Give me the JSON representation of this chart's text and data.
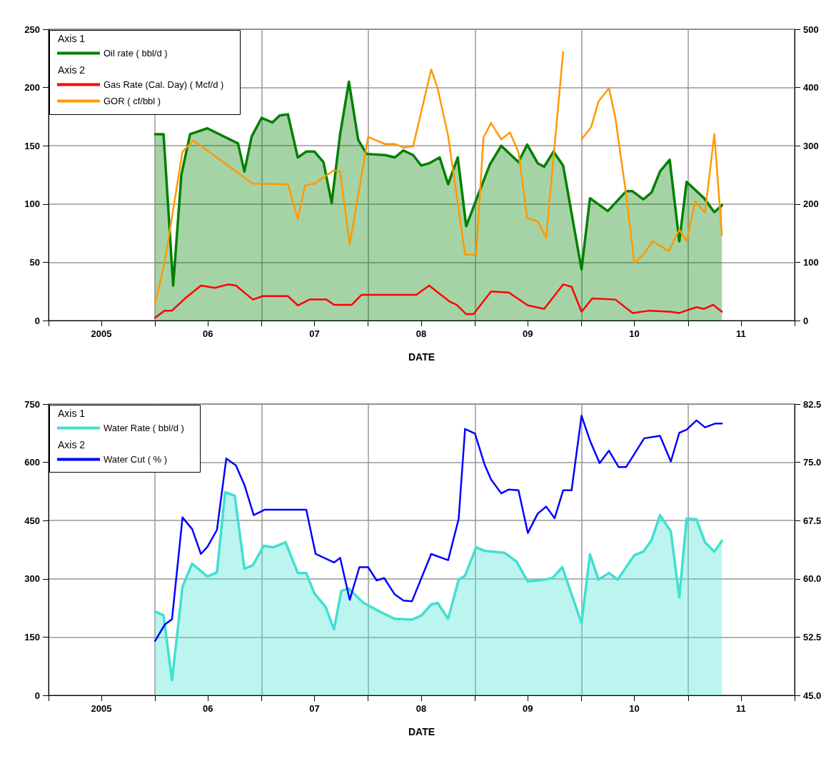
{
  "chart_data": [
    {
      "type": "line",
      "xlabel": "DATE",
      "legend": "top left",
      "grid": true,
      "marker": "none",
      "annotations": [
        "Axis 1",
        "Axis 2"
      ],
      "xlim": [
        "2005-01-01",
        "2012-01-01"
      ],
      "xticks": [
        {
          "value": "2005-01-01",
          "label": null
        },
        {
          "value": "2005-07-01",
          "label": "2005"
        },
        {
          "value": "2006-01-01",
          "label": null
        },
        {
          "value": "2006-07-01",
          "label": "06"
        },
        {
          "value": "2007-01-01",
          "label": null
        },
        {
          "value": "2007-07-01",
          "label": "07"
        },
        {
          "value": "2008-01-01",
          "label": null
        },
        {
          "value": "2008-07-01",
          "label": "08"
        },
        {
          "value": "2009-01-01",
          "label": null
        },
        {
          "value": "2009-07-01",
          "label": "09"
        },
        {
          "value": "2010-01-01",
          "label": null
        },
        {
          "value": "2010-07-01",
          "label": "10"
        },
        {
          "value": "2011-01-01",
          "label": null
        },
        {
          "value": "2011-07-01",
          "label": "11"
        },
        {
          "value": "2012-01-01",
          "label": null
        }
      ],
      "ylim": [
        0,
        250
      ],
      "yticks": [
        0,
        50,
        100,
        150,
        200,
        250
      ],
      "y2lim": [
        0,
        500
      ],
      "y2ticks": [
        0,
        100,
        200,
        300,
        400,
        500
      ],
      "series": [
        {
          "name": "Oil rate ( bbl/d )",
          "type": "area",
          "axis": "y",
          "color": "#008000",
          "x": [
            "2006-01-01",
            "2006-01-30",
            "2006-03-04",
            "2006-04-01",
            "2006-05-01",
            "2006-06-29",
            "2006-10-12",
            "2006-11-03",
            "2006-11-28",
            "2007-01-01",
            "2007-02-07",
            "2007-03-04",
            "2007-04-01",
            "2007-05-05",
            "2007-06-03",
            "2007-07-01",
            "2007-08-01",
            "2007-08-29",
            "2007-09-27",
            "2007-10-27",
            "2007-11-28",
            "2007-12-27",
            "2008-02-28",
            "2008-04-01",
            "2008-05-01",
            "2008-06-03",
            "2008-07-01",
            "2008-07-28",
            "2008-09-02",
            "2008-10-01",
            "2008-11-03",
            "2008-12-02",
            "2009-01-12",
            "2009-02-21",
            "2009-04-01",
            "2009-05-30",
            "2009-06-29",
            "2009-08-04",
            "2009-08-26",
            "2009-09-27",
            "2009-10-30",
            "2010-01-01",
            "2010-01-30",
            "2010-04-01",
            "2010-06-03",
            "2010-06-25",
            "2010-08-01",
            "2010-08-29",
            "2010-09-27",
            "2010-10-30",
            "2010-12-02",
            "2010-12-27",
            "2011-02-25",
            "2011-04-01",
            "2011-04-27"
          ],
          "values": [
            160,
            160,
            30,
            125,
            160,
            165,
            152,
            128,
            158,
            174,
            170,
            176,
            177,
            140,
            145,
            145,
            136,
            101,
            160,
            205,
            155,
            143,
            142,
            140,
            146,
            142,
            133,
            135,
            140,
            117,
            140,
            81,
            108,
            134,
            150,
            136,
            151,
            135,
            132,
            145,
            133,
            44,
            105,
            94,
            111,
            111,
            104,
            110,
            128,
            138,
            68,
            119,
            105,
            93,
            99
          ]
        },
        {
          "name": "Gas Rate (Cal. Day) ( Mcf/d )",
          "type": "line",
          "axis": "y2",
          "color": "#ff0000",
          "x": [
            "2006-01-01",
            "2006-02-03",
            "2006-02-28",
            "2006-04-16",
            "2006-06-07",
            "2006-07-25",
            "2006-09-09",
            "2006-10-05",
            "2006-12-02",
            "2007-01-05",
            "2007-04-01",
            "2007-05-05",
            "2007-06-14",
            "2007-08-11",
            "2007-09-06",
            "2007-11-06",
            "2007-12-09",
            "2008-06-14",
            "2008-07-28",
            "2008-10-08",
            "2008-10-30",
            "2008-12-02",
            "2008-12-27",
            "2009-02-25",
            "2009-04-27",
            "2009-07-01",
            "2009-08-26",
            "2009-10-30",
            "2009-11-28",
            "2010-01-01",
            "2010-02-07",
            "2010-04-27",
            "2010-06-25",
            "2010-08-22",
            "2010-11-03",
            "2010-12-02",
            "2011-01-30",
            "2011-02-25",
            "2011-03-28",
            "2011-04-27"
          ],
          "values": [
            5,
            17,
            17,
            39,
            60,
            56,
            62,
            60,
            36,
            42,
            42,
            26,
            36,
            36,
            27,
            27,
            44,
            44,
            60,
            32,
            27,
            11,
            11,
            50,
            48,
            26,
            20,
            62,
            58,
            15,
            38,
            36,
            13,
            17,
            15,
            13,
            23,
            20,
            27,
            15
          ]
        },
        {
          "name": "GOR ( cf/bbl )",
          "type": "line",
          "axis": "y2",
          "color": "#ff9900",
          "x": [
            "2006-01-01",
            "2006-02-03",
            "2006-04-05",
            "2006-05-12",
            "2006-12-02",
            "2007-04-01",
            "2007-05-05",
            "2007-05-30",
            "2007-07-01",
            "2007-09-06",
            "2007-09-27",
            "2007-10-30",
            "2008-01-01",
            "2008-02-28",
            "2008-04-01",
            "2008-05-01",
            "2008-06-03",
            "2008-08-04",
            "2008-08-26",
            "2008-10-01",
            "2008-10-30",
            "2008-11-28",
            "2009-01-05",
            "2009-01-30",
            "2009-02-25",
            "2009-04-01",
            "2009-05-01",
            "2009-05-30",
            "2009-06-29",
            "2009-08-04",
            "2009-09-02",
            "2009-10-30",
            "2009-12-02",
            "2010-01-01",
            "2010-02-03",
            "2010-02-28",
            "2010-04-05",
            "2010-04-27",
            "2010-06-03",
            "2010-07-01",
            "2010-08-01",
            "2010-09-02",
            "2010-10-27",
            "2010-12-02",
            "2010-12-27",
            "2011-01-26",
            "2011-02-28",
            "2011-04-01",
            "2011-04-27"
          ],
          "values": [
            29,
            100,
            290,
            309,
            235,
            234,
            174,
            232,
            235,
            258,
            256,
            131,
            315,
            303,
            303,
            297,
            299,
            431,
            399,
            317,
            216,
            113,
            113,
            314,
            339,
            311,
            323,
            289,
            176,
            170,
            142,
            461,
            null,
            311,
            332,
            376,
            399,
            348,
            216,
            99,
            113,
            136,
            119,
            156,
            137,
            205,
            185,
            320,
            146
          ]
        }
      ]
    },
    {
      "type": "line",
      "xlabel": "DATE",
      "legend": "top left",
      "grid": true,
      "marker": "none",
      "annotations": [
        "Axis 1",
        "Axis 2"
      ],
      "xlim": [
        "2005-01-01",
        "2012-01-01"
      ],
      "xticks": [
        {
          "value": "2005-01-01",
          "label": null
        },
        {
          "value": "2005-07-01",
          "label": "2005"
        },
        {
          "value": "2006-01-01",
          "label": null
        },
        {
          "value": "2006-07-01",
          "label": "06"
        },
        {
          "value": "2007-01-01",
          "label": null
        },
        {
          "value": "2007-07-01",
          "label": "07"
        },
        {
          "value": "2008-01-01",
          "label": null
        },
        {
          "value": "2008-07-01",
          "label": "08"
        },
        {
          "value": "2009-01-01",
          "label": null
        },
        {
          "value": "2009-07-01",
          "label": "09"
        },
        {
          "value": "2010-01-01",
          "label": null
        },
        {
          "value": "2010-07-01",
          "label": "10"
        },
        {
          "value": "2011-01-01",
          "label": null
        },
        {
          "value": "2011-07-01",
          "label": "11"
        },
        {
          "value": "2012-01-01",
          "label": null
        }
      ],
      "ylim": [
        0,
        750
      ],
      "yticks": [
        0,
        150,
        300,
        450,
        600,
        750
      ],
      "y2lim": [
        45,
        82.5
      ],
      "y2ticks": [
        {
          "value": 45,
          "label": "45.0"
        },
        {
          "value": 52.5,
          "label": "52.5"
        },
        {
          "value": 60,
          "label": "60.0"
        },
        {
          "value": 67.5,
          "label": "67.5"
        },
        {
          "value": 75,
          "label": "75.0"
        },
        {
          "value": 82.5,
          "label": "82.5"
        }
      ],
      "series": [
        {
          "name": "Water Rate ( bbl/d )",
          "type": "area",
          "axis": "y",
          "color": "#40e0d0",
          "x": [
            "2006-01-01",
            "2006-01-30",
            "2006-02-28",
            "2006-04-05",
            "2006-05-08",
            "2006-06-29",
            "2006-08-01",
            "2006-08-29",
            "2006-10-01",
            "2006-11-03",
            "2006-12-02",
            "2007-01-08",
            "2007-02-10",
            "2007-03-24",
            "2007-05-05",
            "2007-06-03",
            "2007-07-01",
            "2007-08-08",
            "2007-09-06",
            "2007-10-01",
            "2007-10-27",
            "2007-12-16",
            "2008-02-14",
            "2008-04-01",
            "2008-05-30",
            "2008-07-01",
            "2008-08-04",
            "2008-08-26",
            "2008-10-01",
            "2008-11-06",
            "2008-11-28",
            "2009-01-05",
            "2009-02-03",
            "2009-04-12",
            "2009-05-23",
            "2009-07-01",
            "2009-08-26",
            "2009-09-24",
            "2009-10-27",
            "2010-01-01",
            "2010-01-30",
            "2010-02-28",
            "2010-04-05",
            "2010-05-05",
            "2010-07-01",
            "2010-08-01",
            "2010-08-29",
            "2010-09-27",
            "2010-11-03",
            "2010-12-02",
            "2010-12-27",
            "2011-01-30",
            "2011-02-28",
            "2011-04-01",
            "2011-04-27"
          ],
          "values": [
            216,
            206,
            39,
            280,
            339,
            306,
            317,
            523,
            514,
            326,
            335,
            385,
            381,
            394,
            315,
            315,
            262,
            228,
            170,
            269,
            275,
            238,
            214,
            197,
            195,
            205,
            234,
            238,
            197,
            298,
            308,
            381,
            372,
            367,
            345,
            293,
            298,
            302,
            330,
            186,
            363,
            298,
            315,
            298,
            361,
            370,
            400,
            464,
            422,
            252,
            455,
            453,
            394,
            370,
            398
          ]
        },
        {
          "name": "Water Cut ( % )",
          "type": "line",
          "axis": "y2",
          "color": "#0000ff",
          "x": [
            "2006-01-01",
            "2006-02-03",
            "2006-02-28",
            "2006-04-05",
            "2006-05-08",
            "2006-06-07",
            "2006-06-29",
            "2006-08-01",
            "2006-09-02",
            "2006-10-05",
            "2006-11-03",
            "2006-12-05",
            "2007-01-12",
            "2007-06-03",
            "2007-07-05",
            "2007-09-06",
            "2007-09-27",
            "2007-10-30",
            "2007-12-02",
            "2008-01-01",
            "2008-01-30",
            "2008-02-25",
            "2008-04-01",
            "2008-05-01",
            "2008-05-30",
            "2008-08-04",
            "2008-10-01",
            "2008-11-06",
            "2008-11-28",
            "2009-01-01",
            "2009-02-03",
            "2009-02-25",
            "2009-04-01",
            "2009-04-27",
            "2009-05-30",
            "2009-07-01",
            "2009-08-04",
            "2009-09-02",
            "2009-10-01",
            "2009-10-30",
            "2009-11-28",
            "2010-01-01",
            "2010-01-30",
            "2010-03-04",
            "2010-04-05",
            "2010-05-08",
            "2010-06-03",
            "2010-08-04",
            "2010-09-27",
            "2010-11-03",
            "2010-12-02",
            "2010-12-27",
            "2011-01-30",
            "2011-02-28",
            "2011-04-05",
            "2011-04-27"
          ],
          "values": [
            52.0,
            54.1,
            54.8,
            67.9,
            66.4,
            63.2,
            64.1,
            66.3,
            75.5,
            74.6,
            72.1,
            68.2,
            68.9,
            68.9,
            63.2,
            62.1,
            62.7,
            57.3,
            61.5,
            61.5,
            59.8,
            60.1,
            58.0,
            57.2,
            57.1,
            63.2,
            62.4,
            67.7,
            79.3,
            78.7,
            74.7,
            72.8,
            71.0,
            71.5,
            71.4,
            65.9,
            68.4,
            69.3,
            67.8,
            71.4,
            71.4,
            81.0,
            77.8,
            74.9,
            76.5,
            74.4,
            74.4,
            78.1,
            78.4,
            75.1,
            78.8,
            79.2,
            80.4,
            79.5,
            80.0,
            80.0
          ]
        }
      ]
    }
  ]
}
